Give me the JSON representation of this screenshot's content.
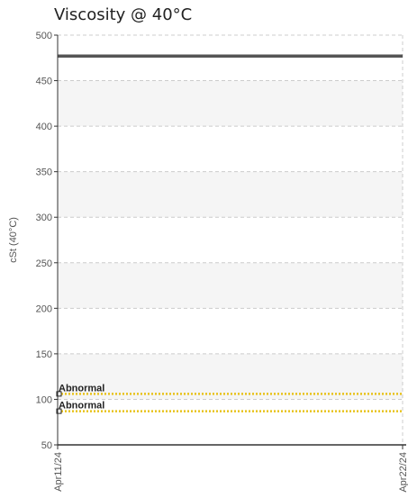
{
  "chart_data": {
    "type": "line",
    "title": "Viscosity @ 40°C",
    "xlabel": "",
    "ylabel": "cSt (40°C)",
    "ylim": [
      50,
      500
    ],
    "yticks": [
      50,
      100,
      150,
      200,
      250,
      300,
      350,
      400,
      450,
      500
    ],
    "x": [
      "Apr11/24",
      "Apr22/24"
    ],
    "series": [
      {
        "values": [
          477,
          477
        ]
      }
    ],
    "limits": [
      {
        "label": "Abnormal",
        "value": 106
      },
      {
        "label": "Abnormal",
        "value": 87
      }
    ],
    "grid": true,
    "colors": {
      "series": "#555555",
      "limit": "#e8c21a",
      "band": "#f5f5f5",
      "grid": "#cccccc",
      "axis": "#333333"
    }
  }
}
